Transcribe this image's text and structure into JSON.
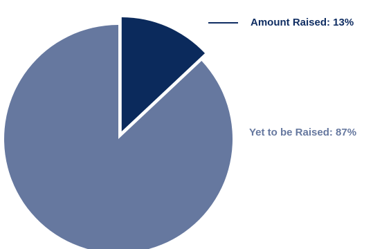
{
  "chart_data": {
    "type": "pie",
    "slices": [
      {
        "label": "Amount Raised",
        "value": 13,
        "display_label": "Amount Raised: 13%",
        "color": "#0b2a5c",
        "exploded": true
      },
      {
        "label": "Yet to be Raised",
        "value": 87,
        "display_label": "Yet to be Raised: 87%",
        "color": "#66789f",
        "exploded": false
      }
    ],
    "legend": "none"
  }
}
